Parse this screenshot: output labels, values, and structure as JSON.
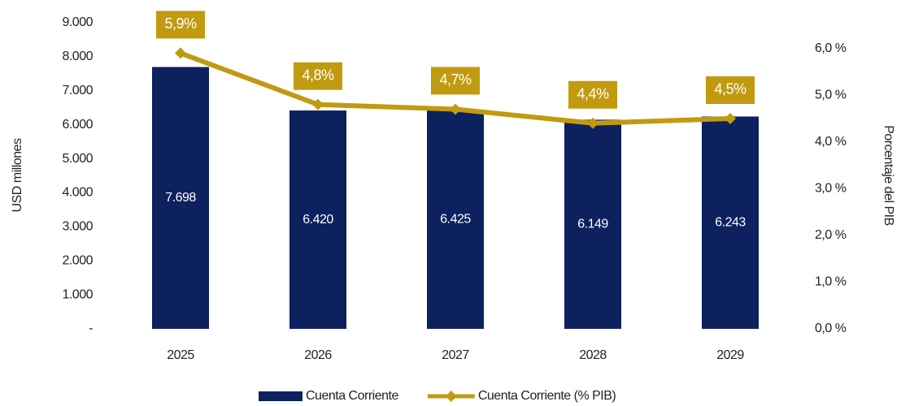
{
  "chart_data": {
    "type": "bar",
    "categories": [
      "2025",
      "2026",
      "2027",
      "2028",
      "2029"
    ],
    "ylabel": "USD millones",
    "y2label": "Porcentaje del PIB",
    "ylim": [
      0,
      9000
    ],
    "yticks": [
      {
        "value": 0,
        "label": "-"
      },
      {
        "value": 1000,
        "label": "1.000"
      },
      {
        "value": 2000,
        "label": "2.000"
      },
      {
        "value": 3000,
        "label": "3.000"
      },
      {
        "value": 4000,
        "label": "4.000"
      },
      {
        "value": 5000,
        "label": "5.000"
      },
      {
        "value": 6000,
        "label": "6.000"
      },
      {
        "value": 7000,
        "label": "7.000"
      },
      {
        "value": 8000,
        "label": "8.000"
      },
      {
        "value": 9000,
        "label": "9.000"
      }
    ],
    "y2lim": [
      0,
      6.55
    ],
    "y2ticks": [
      {
        "value": 0,
        "label": "0,0 %"
      },
      {
        "value": 1,
        "label": "1,0 %"
      },
      {
        "value": 2,
        "label": "2,0 %"
      },
      {
        "value": 3,
        "label": "3,0 %"
      },
      {
        "value": 4,
        "label": "4,0 %"
      },
      {
        "value": 5,
        "label": "5,0 %"
      },
      {
        "value": 6,
        "label": "6,0 %"
      }
    ],
    "grid": false,
    "legend": "bottom",
    "series": [
      {
        "name": "Cuenta Corriente",
        "type": "bar",
        "color": "#0c215e",
        "values": [
          7698,
          6420,
          6425,
          6149,
          6243
        ],
        "value_labels": [
          "7.698",
          "6.420",
          "6.425",
          "6.149",
          "6.243"
        ]
      },
      {
        "name": "Cuenta Corriente (% PIB)",
        "type": "line",
        "axis": "y2",
        "color": "#c19a10",
        "values": [
          5.9,
          4.8,
          4.7,
          4.4,
          4.5
        ],
        "value_labels": [
          "5,9%",
          "4,8%",
          "4,7%",
          "4,4%",
          "4,5%"
        ]
      }
    ]
  }
}
